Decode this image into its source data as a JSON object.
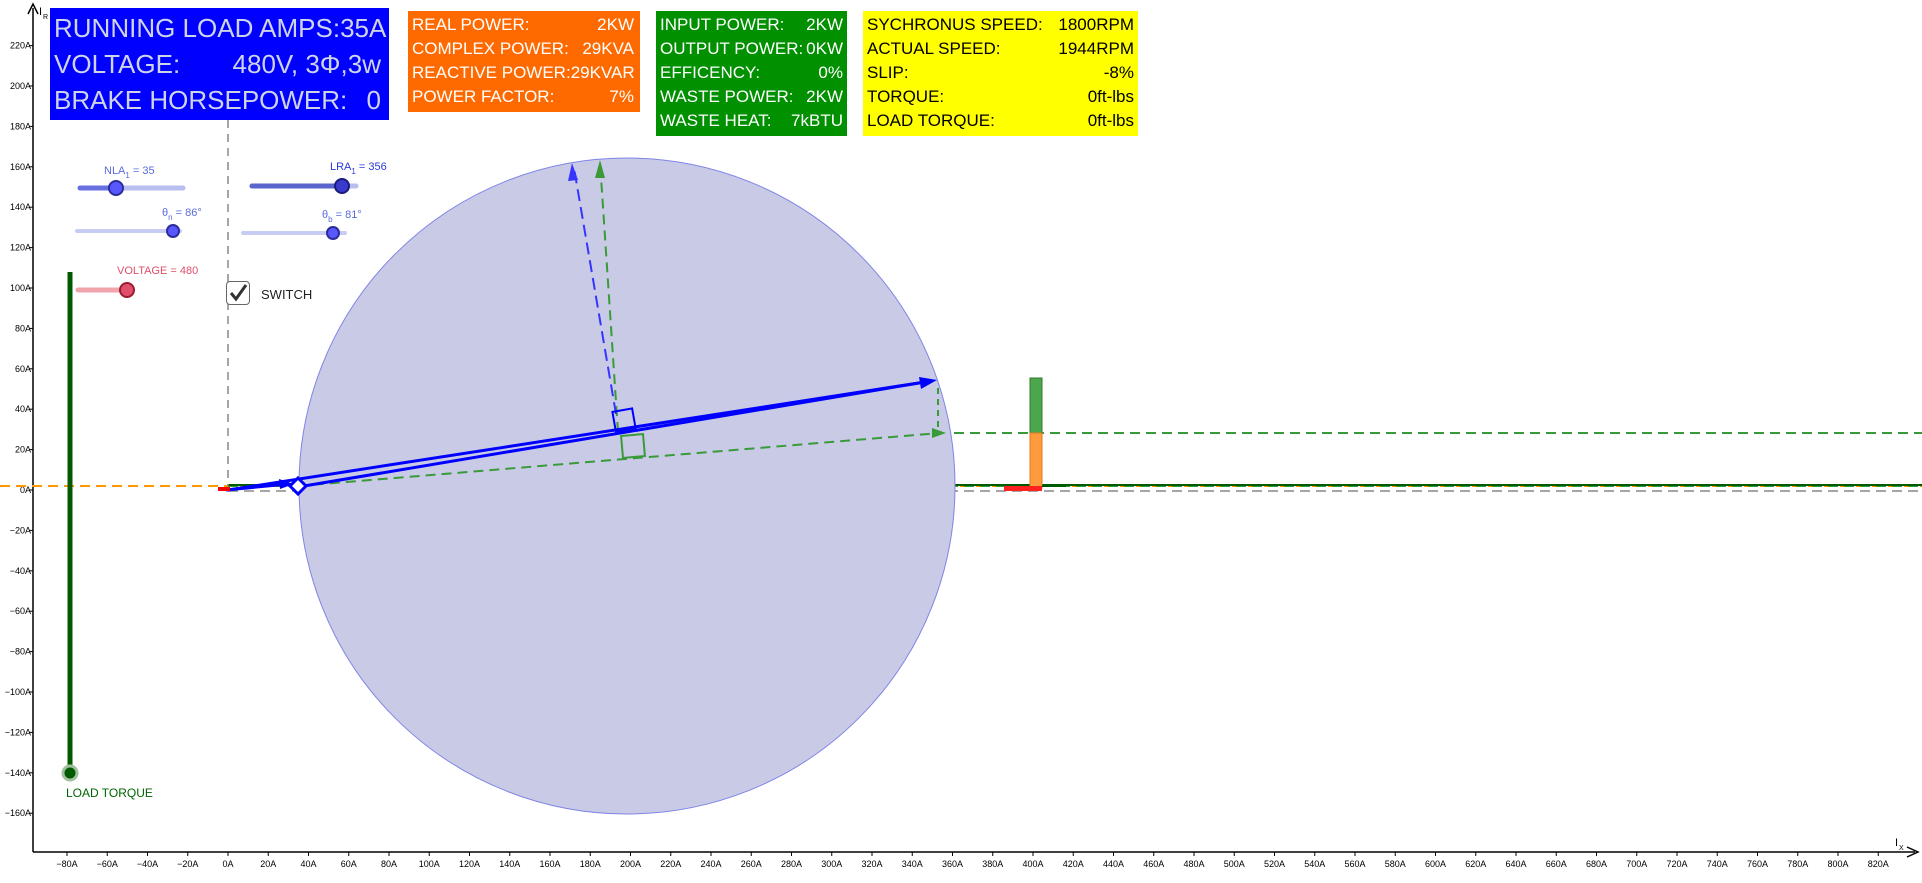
{
  "colors": {
    "axis": "#000000",
    "grid_dash": "#888888",
    "circle_fill": "#c9cbe6",
    "circle_stroke": "#7f84e6",
    "current_vector": "#0000ff",
    "green_dash": "#3a9a3a",
    "orange_dash": "#ff9900",
    "load_torque": "#005a00",
    "voltage_slider": "#f08080"
  },
  "axes": {
    "x_title": "I",
    "x_title_sub": "X",
    "y_title": "I",
    "y_title_sub": "R",
    "x_ticks": [
      "−80A",
      "−60A",
      "−40A",
      "−20A",
      "0A",
      "20A",
      "40A",
      "60A",
      "80A",
      "100A",
      "120A",
      "140A",
      "160A",
      "180A",
      "200A",
      "220A",
      "240A",
      "260A",
      "280A",
      "300A",
      "320A",
      "340A",
      "360A",
      "380A",
      "400A",
      "420A",
      "440A",
      "460A",
      "480A",
      "500A",
      "520A",
      "540A",
      "560A",
      "580A",
      "600A",
      "620A",
      "640A",
      "660A",
      "680A",
      "700A",
      "720A",
      "740A",
      "760A",
      "780A",
      "800A",
      "820A"
    ],
    "y_ticks": [
      "220A",
      "200A",
      "180A",
      "160A",
      "140A",
      "120A",
      "100A",
      "80A",
      "60A",
      "40A",
      "20A",
      "0A",
      "−20A",
      "−40A",
      "−60A",
      "−80A",
      "−100A",
      "−120A",
      "−140A",
      "−160A"
    ]
  },
  "panel_blue": {
    "rows": [
      {
        "label": "RUNNING LOAD AMPS:",
        "value": "35A"
      },
      {
        "label": "VOLTAGE:",
        "value": "480V, 3Φ,3w"
      },
      {
        "label": "BRAKE HORSEPOWER:",
        "value": "0"
      }
    ]
  },
  "panel_orange": {
    "rows": [
      {
        "label": "REAL POWER:",
        "value": "2KW"
      },
      {
        "label": "COMPLEX POWER:",
        "value": "29KVA"
      },
      {
        "label": "REACTIVE POWER:",
        "value": "29KVAR"
      },
      {
        "label": "POWER FACTOR:",
        "value": "7%"
      }
    ]
  },
  "panel_green": {
    "rows": [
      {
        "label": "INPUT POWER:",
        "value": "2KW"
      },
      {
        "label": "OUTPUT POWER:",
        "value": "0KW"
      },
      {
        "label": "EFFICENCY:",
        "value": "0%"
      },
      {
        "label": "WASTE POWER:",
        "value": "2KW"
      },
      {
        "label": "WASTE HEAT:",
        "value": "7kBTU"
      }
    ]
  },
  "panel_yellow": {
    "rows": [
      {
        "label": "SYCHRONUS SPEED:",
        "value": "1800RPM"
      },
      {
        "label": "ACTUAL SPEED:",
        "value": "1944RPM"
      },
      {
        "label": "SLIP:",
        "value": "-8%"
      },
      {
        "label": "TORQUE:",
        "value": "0ft-lbs"
      },
      {
        "label": "LOAD TORQUE:",
        "value": "0ft-lbs"
      }
    ]
  },
  "sliders": {
    "nla": {
      "label": "NLA",
      "sub": "1",
      "text": " = 35",
      "value": 35
    },
    "lra": {
      "label": "LRA",
      "sub": "1",
      "text": " = 356",
      "value": 356
    },
    "theta_n": {
      "label": "θ",
      "sub": "n",
      "text": " = 86°",
      "value": 86
    },
    "theta_b": {
      "label": "θ",
      "sub": "b",
      "text": " = 81°",
      "value": 81
    },
    "voltage": {
      "label": "VOLTAGE = 480",
      "value": 480
    }
  },
  "switch": {
    "label": "SWITCH",
    "checked": true
  },
  "load_torque": {
    "label": "LOAD TORQUE",
    "value_amps": -140
  }
}
